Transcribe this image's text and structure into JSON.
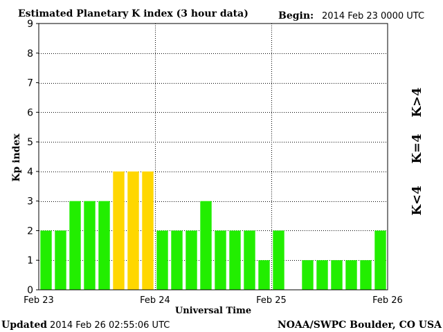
{
  "header": {
    "title": "Estimated Planetary K index (3 hour data)",
    "begin_label": "Begin:",
    "begin_value": "2014 Feb 23 0000 UTC"
  },
  "footer": {
    "updated_label": "Updated",
    "updated_value": "2014 Feb 26 02:55:06 UTC",
    "source": "NOAA/SWPC Boulder, CO USA"
  },
  "legend": {
    "low": "K<4",
    "mid": "K=4",
    "high": "K>4"
  },
  "colors": {
    "low": "#22ee00",
    "mid": "#ffd700",
    "high": "#ff3300",
    "frame": "#000000"
  },
  "chart_data": {
    "type": "bar",
    "xlabel": "Universal Time",
    "ylabel": "Kp index",
    "ylim": [
      0,
      9
    ],
    "yticks": [
      0,
      1,
      2,
      3,
      4,
      5,
      6,
      7,
      8,
      9
    ],
    "xticks": [
      "Feb 23",
      "Feb 24",
      "Feb 25",
      "Feb 26"
    ],
    "grid": true,
    "interval_hours": 3,
    "values": [
      2,
      2,
      3,
      3,
      3,
      4,
      4,
      4,
      2,
      2,
      2,
      3,
      2,
      2,
      2,
      1,
      2,
      0,
      1,
      1,
      1,
      1,
      1,
      2
    ]
  }
}
